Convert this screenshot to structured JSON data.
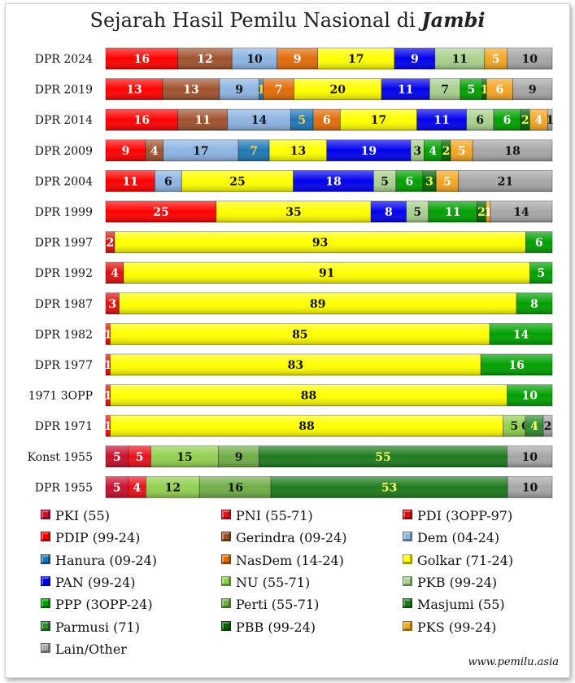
{
  "title_prefix": "Sejarah Hasil Pemilu Nasional di",
  "title_place": "Jambi",
  "source": "www.pemilu.asia",
  "parties": {
    "PKI": {
      "label": "PKI (55)",
      "color": "#c8102e"
    },
    "PNI": {
      "label": "PNI (55-71)",
      "color": "#e8101a"
    },
    "PDI": {
      "label": "PDI (3OPP-97)",
      "color": "#e01010"
    },
    "PDIP": {
      "label": "PDIP (99-24)",
      "color": "#ff0000"
    },
    "Gerindra": {
      "label": "Gerindra (09-24)",
      "color": "#a0522d"
    },
    "Dem": {
      "label": "Dem (04-24)",
      "color": "#8db4e2"
    },
    "Hanura": {
      "label": "Hanura (09-24)",
      "color": "#1f78b4"
    },
    "NasDem": {
      "label": "NasDem (14-24)",
      "color": "#e36c09"
    },
    "Golkar": {
      "label": "Golkar (71-24)",
      "color": "#ffff00"
    },
    "PAN": {
      "label": "PAN (99-24)",
      "color": "#0000ee"
    },
    "NU": {
      "label": "NU (55-71)",
      "color": "#92d050"
    },
    "PKB": {
      "label": "PKB (99-24)",
      "color": "#a9d18e"
    },
    "PPP": {
      "label": "PPP (3OPP-24)",
      "color": "#00a000"
    },
    "Perti": {
      "label": "Perti (55-71)",
      "color": "#70ad47"
    },
    "Masjumi": {
      "label": "Masjumi (55)",
      "color": "#1e7b1e"
    },
    "Parmusi": {
      "label": "Parmusi (71)",
      "color": "#2e8b2e"
    },
    "PBB": {
      "label": "PBB (99-24)",
      "color": "#006400"
    },
    "PKS": {
      "label": "PKS (99-24)",
      "color": "#f5a623"
    },
    "Other": {
      "label": "Lain/Other",
      "color": "#a6a6a6"
    }
  },
  "legend_order": [
    "PKI",
    "PNI",
    "PDI",
    "PDIP",
    "Gerindra",
    "Dem",
    "Hanura",
    "NasDem",
    "Golkar",
    "PAN",
    "NU",
    "PKB",
    "PPP",
    "Perti",
    "Masjumi",
    "Parmusi",
    "PBB",
    "PKS",
    "Other"
  ],
  "chart_data": {
    "type": "bar",
    "orientation": "horizontal",
    "stacked": true,
    "unit": "percent",
    "xlim": [
      0,
      100
    ],
    "rows": [
      {
        "label": "DPR 2024",
        "segments": [
          [
            "PDIP",
            16
          ],
          [
            "Gerindra",
            12
          ],
          [
            "Dem",
            10
          ],
          [
            "NasDem",
            9
          ],
          [
            "Golkar",
            17
          ],
          [
            "PAN",
            9
          ],
          [
            "PKB",
            11
          ],
          [
            "PKS",
            5
          ],
          [
            "Other",
            10
          ]
        ]
      },
      {
        "label": "DPR 2019",
        "segments": [
          [
            "PDIP",
            13
          ],
          [
            "Gerindra",
            13
          ],
          [
            "Dem",
            9
          ],
          [
            "Hanura",
            1
          ],
          [
            "NasDem",
            7
          ],
          [
            "Golkar",
            20
          ],
          [
            "PAN",
            11
          ],
          [
            "PKB",
            7
          ],
          [
            "PPP",
            5
          ],
          [
            "PBB",
            1
          ],
          [
            "PKS",
            6
          ],
          [
            "Other",
            9
          ]
        ]
      },
      {
        "label": "DPR 2014",
        "segments": [
          [
            "PDIP",
            16
          ],
          [
            "Gerindra",
            11
          ],
          [
            "Dem",
            14
          ],
          [
            "Hanura",
            5
          ],
          [
            "NasDem",
            6
          ],
          [
            "Golkar",
            17
          ],
          [
            "PAN",
            11
          ],
          [
            "PKB",
            6
          ],
          [
            "PPP",
            6
          ],
          [
            "PBB",
            2
          ],
          [
            "PKS",
            4
          ],
          [
            "Other",
            1
          ]
        ]
      },
      {
        "label": "DPR 2009",
        "segments": [
          [
            "PDIP",
            9
          ],
          [
            "Gerindra",
            4
          ],
          [
            "Dem",
            17
          ],
          [
            "Hanura",
            7
          ],
          [
            "Golkar",
            13
          ],
          [
            "PAN",
            19
          ],
          [
            "PKB",
            3
          ],
          [
            "PPP",
            4
          ],
          [
            "PBB",
            2
          ],
          [
            "PKS",
            5
          ],
          [
            "Other",
            18
          ]
        ]
      },
      {
        "label": "DPR 2004",
        "segments": [
          [
            "PDIP",
            11
          ],
          [
            "Dem",
            6
          ],
          [
            "Golkar",
            25
          ],
          [
            "PAN",
            18
          ],
          [
            "PKB",
            5
          ],
          [
            "PPP",
            6
          ],
          [
            "PBB",
            3
          ],
          [
            "PKS",
            5
          ],
          [
            "Other",
            21
          ]
        ]
      },
      {
        "label": "DPR 1999",
        "segments": [
          [
            "PDIP",
            25
          ],
          [
            "Golkar",
            35
          ],
          [
            "PAN",
            8
          ],
          [
            "PKB",
            5
          ],
          [
            "PPP",
            11
          ],
          [
            "PBB",
            2
          ],
          [
            "PKS",
            1
          ],
          [
            "Other",
            14
          ]
        ]
      },
      {
        "label": "DPR 1997",
        "segments": [
          [
            "PDI",
            2
          ],
          [
            "Golkar",
            93
          ],
          [
            "PPP",
            6
          ]
        ]
      },
      {
        "label": "DPR 1992",
        "segments": [
          [
            "PDI",
            4
          ],
          [
            "Golkar",
            91
          ],
          [
            "PPP",
            5
          ]
        ]
      },
      {
        "label": "DPR 1987",
        "segments": [
          [
            "PDI",
            3
          ],
          [
            "Golkar",
            89
          ],
          [
            "PPP",
            8
          ]
        ]
      },
      {
        "label": "DPR 1982",
        "segments": [
          [
            "PDI",
            1
          ],
          [
            "Golkar",
            85
          ],
          [
            "PPP",
            14
          ]
        ]
      },
      {
        "label": "DPR 1977",
        "segments": [
          [
            "PDI",
            1
          ],
          [
            "Golkar",
            83
          ],
          [
            "PPP",
            16
          ]
        ]
      },
      {
        "label": "1971 3OPP",
        "segments": [
          [
            "PDI",
            1
          ],
          [
            "Golkar",
            88
          ],
          [
            "PPP",
            10
          ]
        ]
      },
      {
        "label": "DPR 1971",
        "segments": [
          [
            "PNI",
            1
          ],
          [
            "Golkar",
            88
          ],
          [
            "NU",
            5
          ],
          [
            "Perti",
            0
          ],
          [
            "Parmusi",
            4
          ],
          [
            "Other",
            2
          ]
        ]
      },
      {
        "label": "Konst 1955",
        "segments": [
          [
            "PKI",
            5
          ],
          [
            "PNI",
            5
          ],
          [
            "NU",
            15
          ],
          [
            "Perti",
            9
          ],
          [
            "Masjumi",
            55
          ],
          [
            "Other",
            10
          ]
        ]
      },
      {
        "label": "DPR 1955",
        "segments": [
          [
            "PKI",
            5
          ],
          [
            "PNI",
            4
          ],
          [
            "NU",
            12
          ],
          [
            "Perti",
            16
          ],
          [
            "Masjumi",
            53
          ],
          [
            "Other",
            10
          ]
        ]
      }
    ]
  }
}
